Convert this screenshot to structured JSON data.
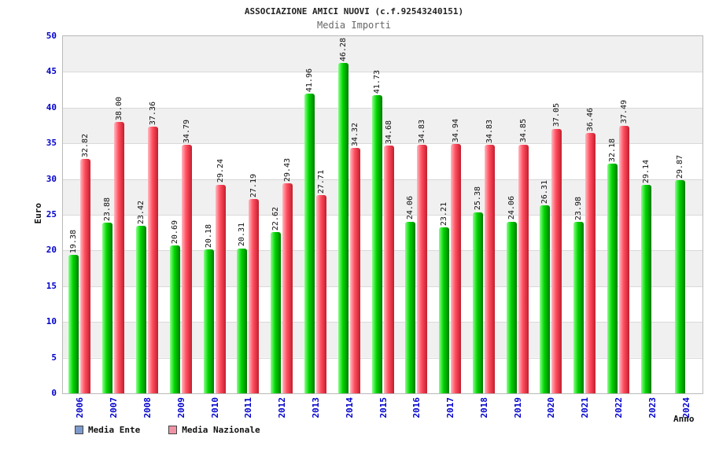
{
  "title": "ASSOCIAZIONE AMICI NUOVI (c.f.92543240151)",
  "subtitle": "Media Importi",
  "chart_data": {
    "type": "bar",
    "title": "Media Importi",
    "categories": [
      "2006",
      "2007",
      "2008",
      "2009",
      "2010",
      "2011",
      "2012",
      "2013",
      "2014",
      "2015",
      "2016",
      "2017",
      "2018",
      "2019",
      "2020",
      "2021",
      "2022",
      "2023",
      "2024"
    ],
    "series": [
      {
        "name": "Media Ente",
        "color": "#00cc00",
        "values": [
          19.38,
          23.88,
          23.42,
          20.69,
          20.18,
          20.31,
          22.62,
          41.96,
          46.28,
          41.73,
          24.06,
          23.21,
          25.38,
          24.06,
          26.31,
          23.98,
          32.18,
          29.14,
          29.87
        ]
      },
      {
        "name": "Media Nazionale",
        "color": "#ff4d5e",
        "values": [
          32.82,
          38.0,
          37.36,
          34.79,
          29.24,
          27.19,
          29.43,
          27.71,
          34.32,
          34.68,
          34.83,
          34.94,
          34.83,
          34.85,
          37.05,
          36.46,
          37.49,
          null,
          null
        ]
      }
    ],
    "xlabel": "Anno",
    "ylabel": "Euro",
    "ylim": [
      0,
      50
    ],
    "ytick_step": 5,
    "grid": true,
    "legend_position": "bottom-left",
    "value_labels": "rotated-90-above-bars",
    "tick_label_color": "#0000cc"
  },
  "legend": {
    "items": [
      {
        "label": "Media Ente",
        "swatch": "#7e99cc"
      },
      {
        "label": "Media Nazionale",
        "swatch": "#ef93a4"
      }
    ]
  }
}
